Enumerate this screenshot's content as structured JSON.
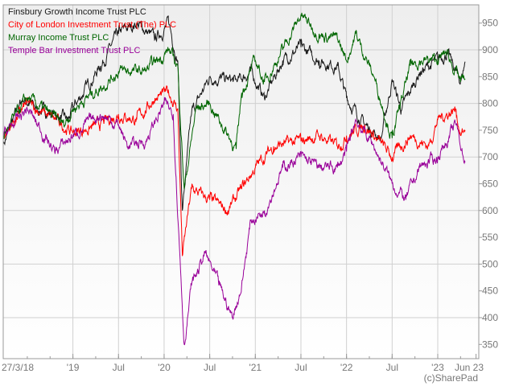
{
  "chart_data": {
    "type": "line",
    "title": "",
    "xlabel": "",
    "ylabel": "",
    "ylim": [
      330,
      985
    ],
    "xlim": [
      2018.236,
      2023.45
    ],
    "y_ticks": [
      350,
      400,
      450,
      500,
      550,
      600,
      650,
      700,
      750,
      800,
      850,
      900,
      950
    ],
    "x_ticks": [
      {
        "t": 2018.236,
        "label": "27/3/18"
      },
      {
        "t": 2019.0,
        "label": "'19"
      },
      {
        "t": 2019.5,
        "label": "Jul"
      },
      {
        "t": 2020.0,
        "label": "'20"
      },
      {
        "t": 2020.5,
        "label": "Jul"
      },
      {
        "t": 2021.0,
        "label": "'21"
      },
      {
        "t": 2021.5,
        "label": "Jul"
      },
      {
        "t": 2022.0,
        "label": "'22"
      },
      {
        "t": 2022.5,
        "label": "Jul"
      },
      {
        "t": 2023.0,
        "label": "'23"
      },
      {
        "t": 2023.42,
        "label": "Jun 23"
      }
    ],
    "grid": true,
    "legend_position": "top-left",
    "credit": "(c)SharePad",
    "series": [
      {
        "name": "Finsbury Growth Income Trust PLC",
        "color": "#1a1a1a",
        "x": [
          2018.24,
          2018.45,
          2018.6,
          2018.8,
          2018.95,
          2019.0,
          2019.3,
          2019.5,
          2019.7,
          2019.9,
          2020.05,
          2020.15,
          2020.2,
          2020.3,
          2020.5,
          2020.8,
          2020.95,
          2021.1,
          2021.3,
          2021.5,
          2021.7,
          2021.9,
          2022.0,
          2022.2,
          2022.38,
          2022.5,
          2022.6,
          2022.8,
          2023.0,
          2023.1,
          2023.25,
          2023.3
        ],
        "y": [
          725,
          810,
          790,
          780,
          768,
          790,
          870,
          930,
          950,
          920,
          950,
          880,
          600,
          780,
          850,
          840,
          860,
          810,
          880,
          905,
          880,
          870,
          810,
          760,
          735,
          845,
          787,
          858,
          880,
          895,
          840,
          878
        ]
      },
      {
        "name": "City of London Investment Trust (The) PLC",
        "color": "#ff0000",
        "x": [
          2018.24,
          2018.5,
          2018.8,
          2019.0,
          2019.3,
          2019.5,
          2019.7,
          2019.9,
          2020.05,
          2020.15,
          2020.2,
          2020.3,
          2020.5,
          2020.7,
          2020.85,
          2021.0,
          2021.2,
          2021.5,
          2021.7,
          2021.9,
          2022.0,
          2022.2,
          2022.5,
          2022.7,
          2022.9,
          2023.0,
          2023.2,
          2023.25,
          2023.3
        ],
        "y": [
          740,
          800,
          770,
          745,
          760,
          780,
          770,
          810,
          820,
          790,
          515,
          640,
          620,
          600,
          640,
          680,
          720,
          730,
          740,
          720,
          740,
          760,
          700,
          740,
          720,
          770,
          790,
          740,
          750
        ]
      },
      {
        "name": "Murray Income Trust PLC",
        "color": "#006600",
        "x": [
          2018.24,
          2018.5,
          2018.9,
          2019.0,
          2019.3,
          2019.5,
          2019.8,
          2020.05,
          2020.15,
          2020.22,
          2020.35,
          2020.5,
          2020.79,
          2020.85,
          2021.0,
          2021.1,
          2021.3,
          2021.5,
          2021.7,
          2021.9,
          2022.0,
          2022.1,
          2022.3,
          2022.5,
          2022.7,
          2022.8,
          2023.0,
          2023.1,
          2023.25,
          2023.3
        ],
        "y": [
          740,
          810,
          760,
          790,
          830,
          860,
          860,
          900,
          870,
          640,
          790,
          800,
          715,
          820,
          880,
          840,
          900,
          965,
          930,
          920,
          880,
          930,
          850,
          735,
          870,
          880,
          880,
          895,
          840,
          846
        ]
      },
      {
        "name": "Temple Bar Investment Trust PLC",
        "color": "#990099",
        "x": [
          2018.24,
          2018.5,
          2018.8,
          2019.0,
          2019.3,
          2019.5,
          2019.6,
          2019.8,
          2020.0,
          2020.1,
          2020.22,
          2020.3,
          2020.45,
          2020.6,
          2020.75,
          2020.85,
          2020.95,
          2021.1,
          2021.3,
          2021.5,
          2021.7,
          2021.9,
          2022.0,
          2022.1,
          2022.3,
          2022.5,
          2022.65,
          2022.8,
          2023.0,
          2023.2,
          2023.3
        ],
        "y": [
          740,
          790,
          710,
          740,
          780,
          760,
          720,
          730,
          800,
          780,
          350,
          460,
          520,
          460,
          400,
          460,
          580,
          600,
          680,
          700,
          680,
          680,
          710,
          770,
          720,
          650,
          620,
          680,
          700,
          760,
          690
        ]
      }
    ]
  }
}
